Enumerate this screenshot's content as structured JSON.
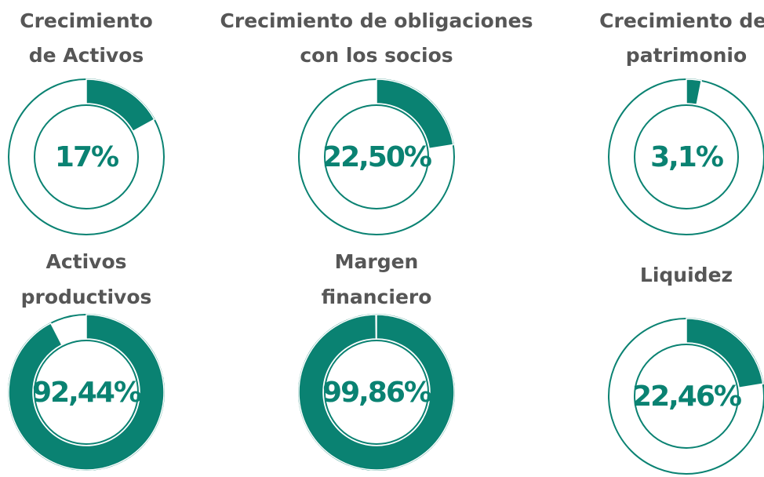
{
  "chart_data": [
    {
      "type": "donut",
      "title": [
        "Crecimiento",
        "de Activos"
      ],
      "values": [
        17
      ],
      "value_labels": [
        "17%"
      ],
      "color": "#0a8272"
    },
    {
      "type": "donut",
      "title": [
        "Crecimiento de obligaciones",
        "con los socios"
      ],
      "values": [
        22.5
      ],
      "value_labels": [
        "22,50%"
      ],
      "color": "#0a8272"
    },
    {
      "type": "donut",
      "title": [
        "Crecimiento del",
        "patrimonio"
      ],
      "values": [
        3.1
      ],
      "value_labels": [
        "3,1%"
      ],
      "color": "#0a8272"
    },
    {
      "type": "donut",
      "title": [
        "Activos",
        "productivos"
      ],
      "values": [
        92.44
      ],
      "value_labels": [
        "92,44%"
      ],
      "color": "#0a8272"
    },
    {
      "type": "donut",
      "title": [
        "Margen",
        "financiero"
      ],
      "values": [
        99.86
      ],
      "value_labels": [
        "99,86%"
      ],
      "color": "#0a8272"
    },
    {
      "type": "donut",
      "title": [
        "Liquidez"
      ],
      "values": [
        22.46
      ],
      "value_labels": [
        "22,46%"
      ],
      "color": "#0a8272"
    }
  ]
}
